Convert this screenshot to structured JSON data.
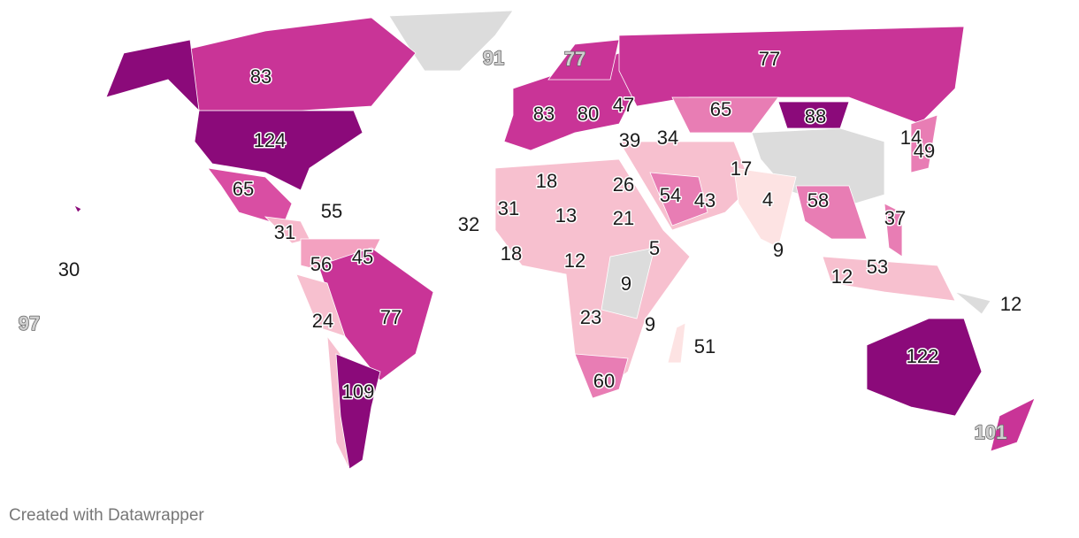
{
  "map": {
    "labels": [
      91,
      77,
      77,
      83,
      83,
      80,
      47,
      65,
      88,
      124,
      39,
      34,
      14,
      49,
      17,
      18,
      26,
      54,
      43,
      4,
      58,
      65,
      55,
      31,
      13,
      21,
      37,
      32,
      31,
      5,
      9,
      18,
      56,
      45,
      12,
      53,
      30,
      12,
      9,
      12,
      24,
      77,
      23,
      9,
      97,
      51,
      122,
      109,
      60,
      101
    ]
  },
  "footer": "Created with Datawrapper"
}
